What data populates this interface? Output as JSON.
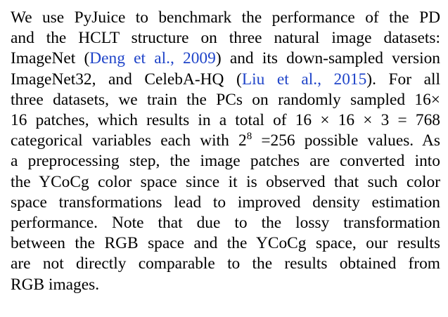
{
  "paragraph": {
    "lines": [
      {
        "parts": [
          {
            "t": "We use PyJuice to benchmark the performance of the PD"
          }
        ]
      },
      {
        "parts": [
          {
            "t": "and the HCLT structure on three natural image datasets:"
          }
        ]
      },
      {
        "parts": [
          {
            "t": "ImageNet ("
          },
          {
            "t": "Deng et al., 2009",
            "cite": true
          },
          {
            "t": ") and its down-sampled version"
          }
        ]
      },
      {
        "parts": [
          {
            "t": "ImageNet32, and CelebA-HQ ("
          },
          {
            "t": "Liu et al., 2015",
            "cite": true
          },
          {
            "t": ").  For all"
          }
        ]
      },
      {
        "parts": [
          {
            "t": "three datasets, we train the PCs on randomly sampled 16×"
          }
        ]
      },
      {
        "parts": [
          {
            "t": "16 patches, which results in a total of 16 × 16 × 3 = 768"
          }
        ]
      },
      {
        "parts": [
          {
            "t": "categorical variables each with 2"
          },
          {
            "t": "8",
            "sup": true
          },
          {
            "t": " =256 possible values. As"
          }
        ]
      },
      {
        "parts": [
          {
            "t": "a preprocessing step, the image patches are converted into"
          }
        ]
      },
      {
        "parts": [
          {
            "t": "the YCoCg color space since it is observed that such color"
          }
        ]
      },
      {
        "parts": [
          {
            "t": "space transformations lead to improved density estimation"
          }
        ]
      },
      {
        "parts": [
          {
            "t": "performance.  Note that due to the lossy transformation"
          }
        ]
      },
      {
        "parts": [
          {
            "t": "between the RGB space and the YCoCg space, our results"
          }
        ]
      },
      {
        "parts": [
          {
            "t": "are not directly comparable to the results obtained from"
          }
        ]
      },
      {
        "parts": [
          {
            "t": "RGB images."
          }
        ]
      }
    ]
  },
  "colors": {
    "text": "#000000",
    "citation": "#1f44c9",
    "background": "#ffffff"
  }
}
